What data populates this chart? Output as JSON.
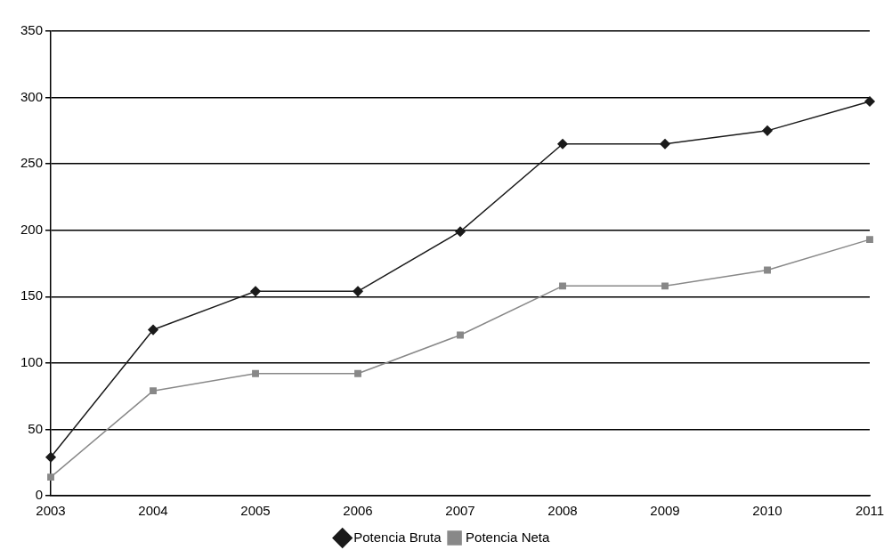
{
  "chart_data": {
    "type": "line",
    "categories": [
      "2003",
      "2004",
      "2005",
      "2006",
      "2007",
      "2008",
      "2009",
      "2010",
      "2011"
    ],
    "series": [
      {
        "name": "Potencia Bruta",
        "color": "#1a1a1a",
        "marker": "diamond",
        "values": [
          29,
          125,
          154,
          154,
          199,
          265,
          265,
          275,
          297
        ]
      },
      {
        "name": "Potencia Neta",
        "color": "#888888",
        "marker": "square",
        "values": [
          14,
          79,
          92,
          92,
          121,
          158,
          158,
          170,
          193
        ]
      }
    ],
    "ylim": [
      0,
      350
    ],
    "yticks": [
      0,
      50,
      100,
      150,
      200,
      250,
      300,
      350
    ],
    "grid": "y",
    "legend": "bottom",
    "line_style": "solid"
  }
}
